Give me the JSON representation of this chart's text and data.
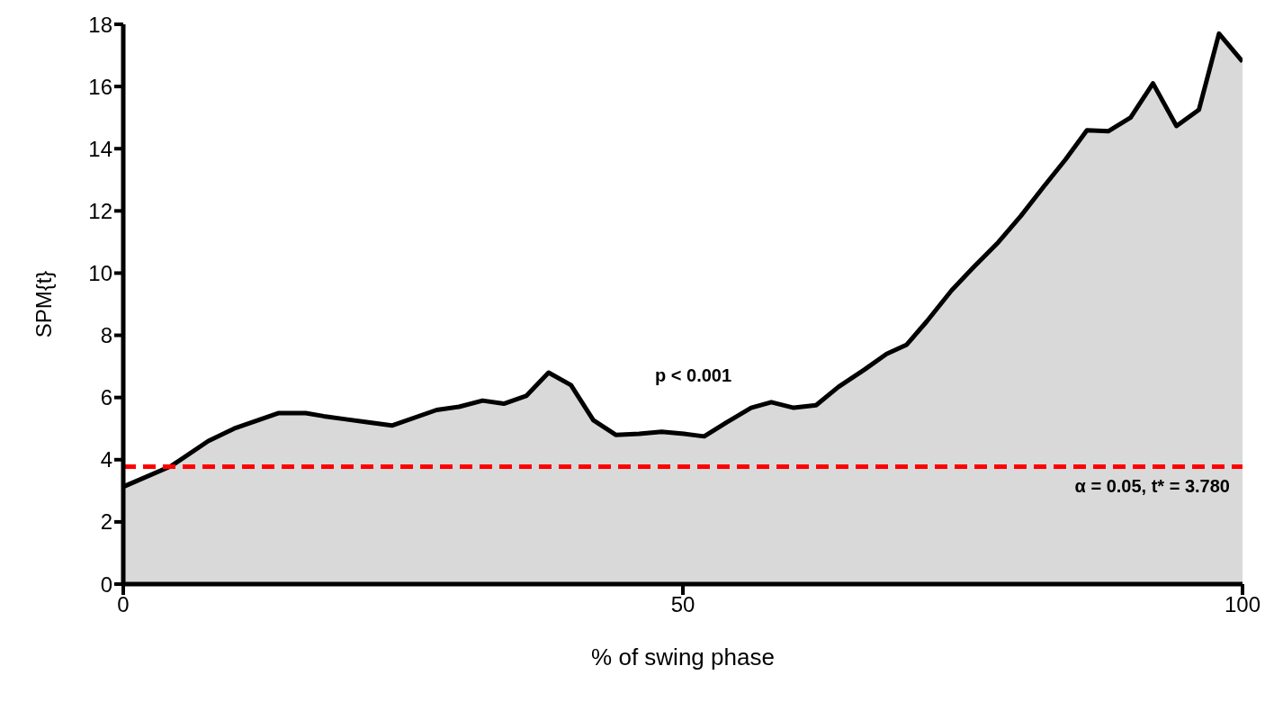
{
  "chart_data": {
    "type": "area",
    "xlabel": "% of swing phase",
    "ylabel": "SPM{t}",
    "series": [
      {
        "color": "#d9d9d9",
        "x": [
          0,
          4.3,
          7.6,
          9.9,
          13.9,
          16.3,
          17.9,
          19.9,
          21.9,
          24.0,
          28.0,
          30.0,
          32.1,
          34.0,
          36.0,
          38.0,
          40.0,
          42.0,
          44.0,
          46.1,
          48.1,
          50.1,
          51.9,
          53.9,
          56.1,
          57.9,
          59.9,
          61.9,
          63.9,
          66.2,
          68.2,
          70.0,
          71.8,
          74.0,
          76.0,
          78.2,
          80.2,
          82.2,
          84.2,
          86.1,
          88.0,
          90.0,
          92.0,
          94.1,
          96.1,
          97.9,
          100
        ],
        "values": [
          3.13,
          3.8,
          4.6,
          5.0,
          5.5,
          5.5,
          5.4,
          5.3,
          5.2,
          5.1,
          5.6,
          5.7,
          5.9,
          5.8,
          6.05,
          6.8,
          6.4,
          5.27,
          4.8,
          4.83,
          4.9,
          4.83,
          4.75,
          5.2,
          5.67,
          5.85,
          5.67,
          5.75,
          6.34,
          6.89,
          7.4,
          7.7,
          8.45,
          9.44,
          10.2,
          11.0,
          11.84,
          12.76,
          13.66,
          14.59,
          14.56,
          15.0,
          16.1,
          14.73,
          15.25,
          17.7,
          16.8
        ]
      }
    ],
    "xlim": [
      0,
      100
    ],
    "xticks": [
      0,
      50,
      100
    ],
    "ylim": [
      0,
      18
    ],
    "yticks": [
      0,
      2,
      4,
      6,
      8,
      10,
      12,
      14,
      16,
      18
    ],
    "grid": false,
    "legend": false,
    "ref_lines": [
      {
        "axis": "y",
        "value": 3.78,
        "label": "α = 0.05, t* = 3.780",
        "color": "#ff0000",
        "line_style": "dashed"
      }
    ],
    "annotations": [
      "p < 0.001"
    ]
  }
}
